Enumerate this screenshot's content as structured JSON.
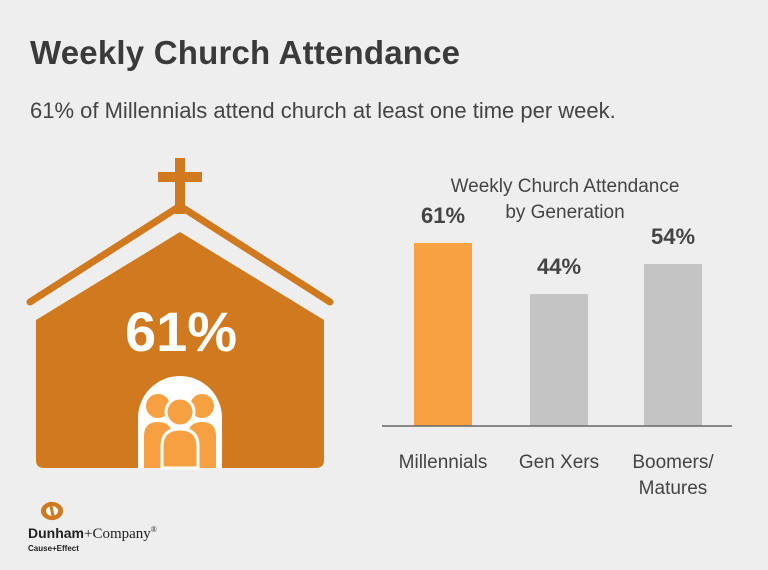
{
  "header": {
    "title": "Weekly Church Attendance",
    "subtitle": "61% of Millennials attend church at least one time per week."
  },
  "church_graphic": {
    "value_label": "61%",
    "icon": "church-icon",
    "color": "#d1791e"
  },
  "chart_data": {
    "type": "bar",
    "title_lines": [
      "Weekly Church Attendance",
      "by Generation"
    ],
    "categories": [
      "Millennials",
      "Gen Xers",
      "Boomers/\nMatures"
    ],
    "category_lines": [
      [
        "Millennials"
      ],
      [
        "Gen Xers"
      ],
      [
        "Boomers/",
        "Matures"
      ]
    ],
    "values": [
      61,
      44,
      54
    ],
    "value_labels": [
      "61%",
      "44%",
      "54%"
    ],
    "colors": [
      "#f7a042",
      "#c4c4c4",
      "#c4c4c4"
    ],
    "ylim": [
      0,
      100
    ],
    "grid": false,
    "legend": "none"
  },
  "footer": {
    "logo_name_bold": "Dunham",
    "logo_name_rest": "+Company",
    "logo_registered": "®",
    "logo_tagline": "Cause+Effect",
    "logo_icon": "dunham-logo-icon",
    "logo_color": "#d1791e"
  }
}
